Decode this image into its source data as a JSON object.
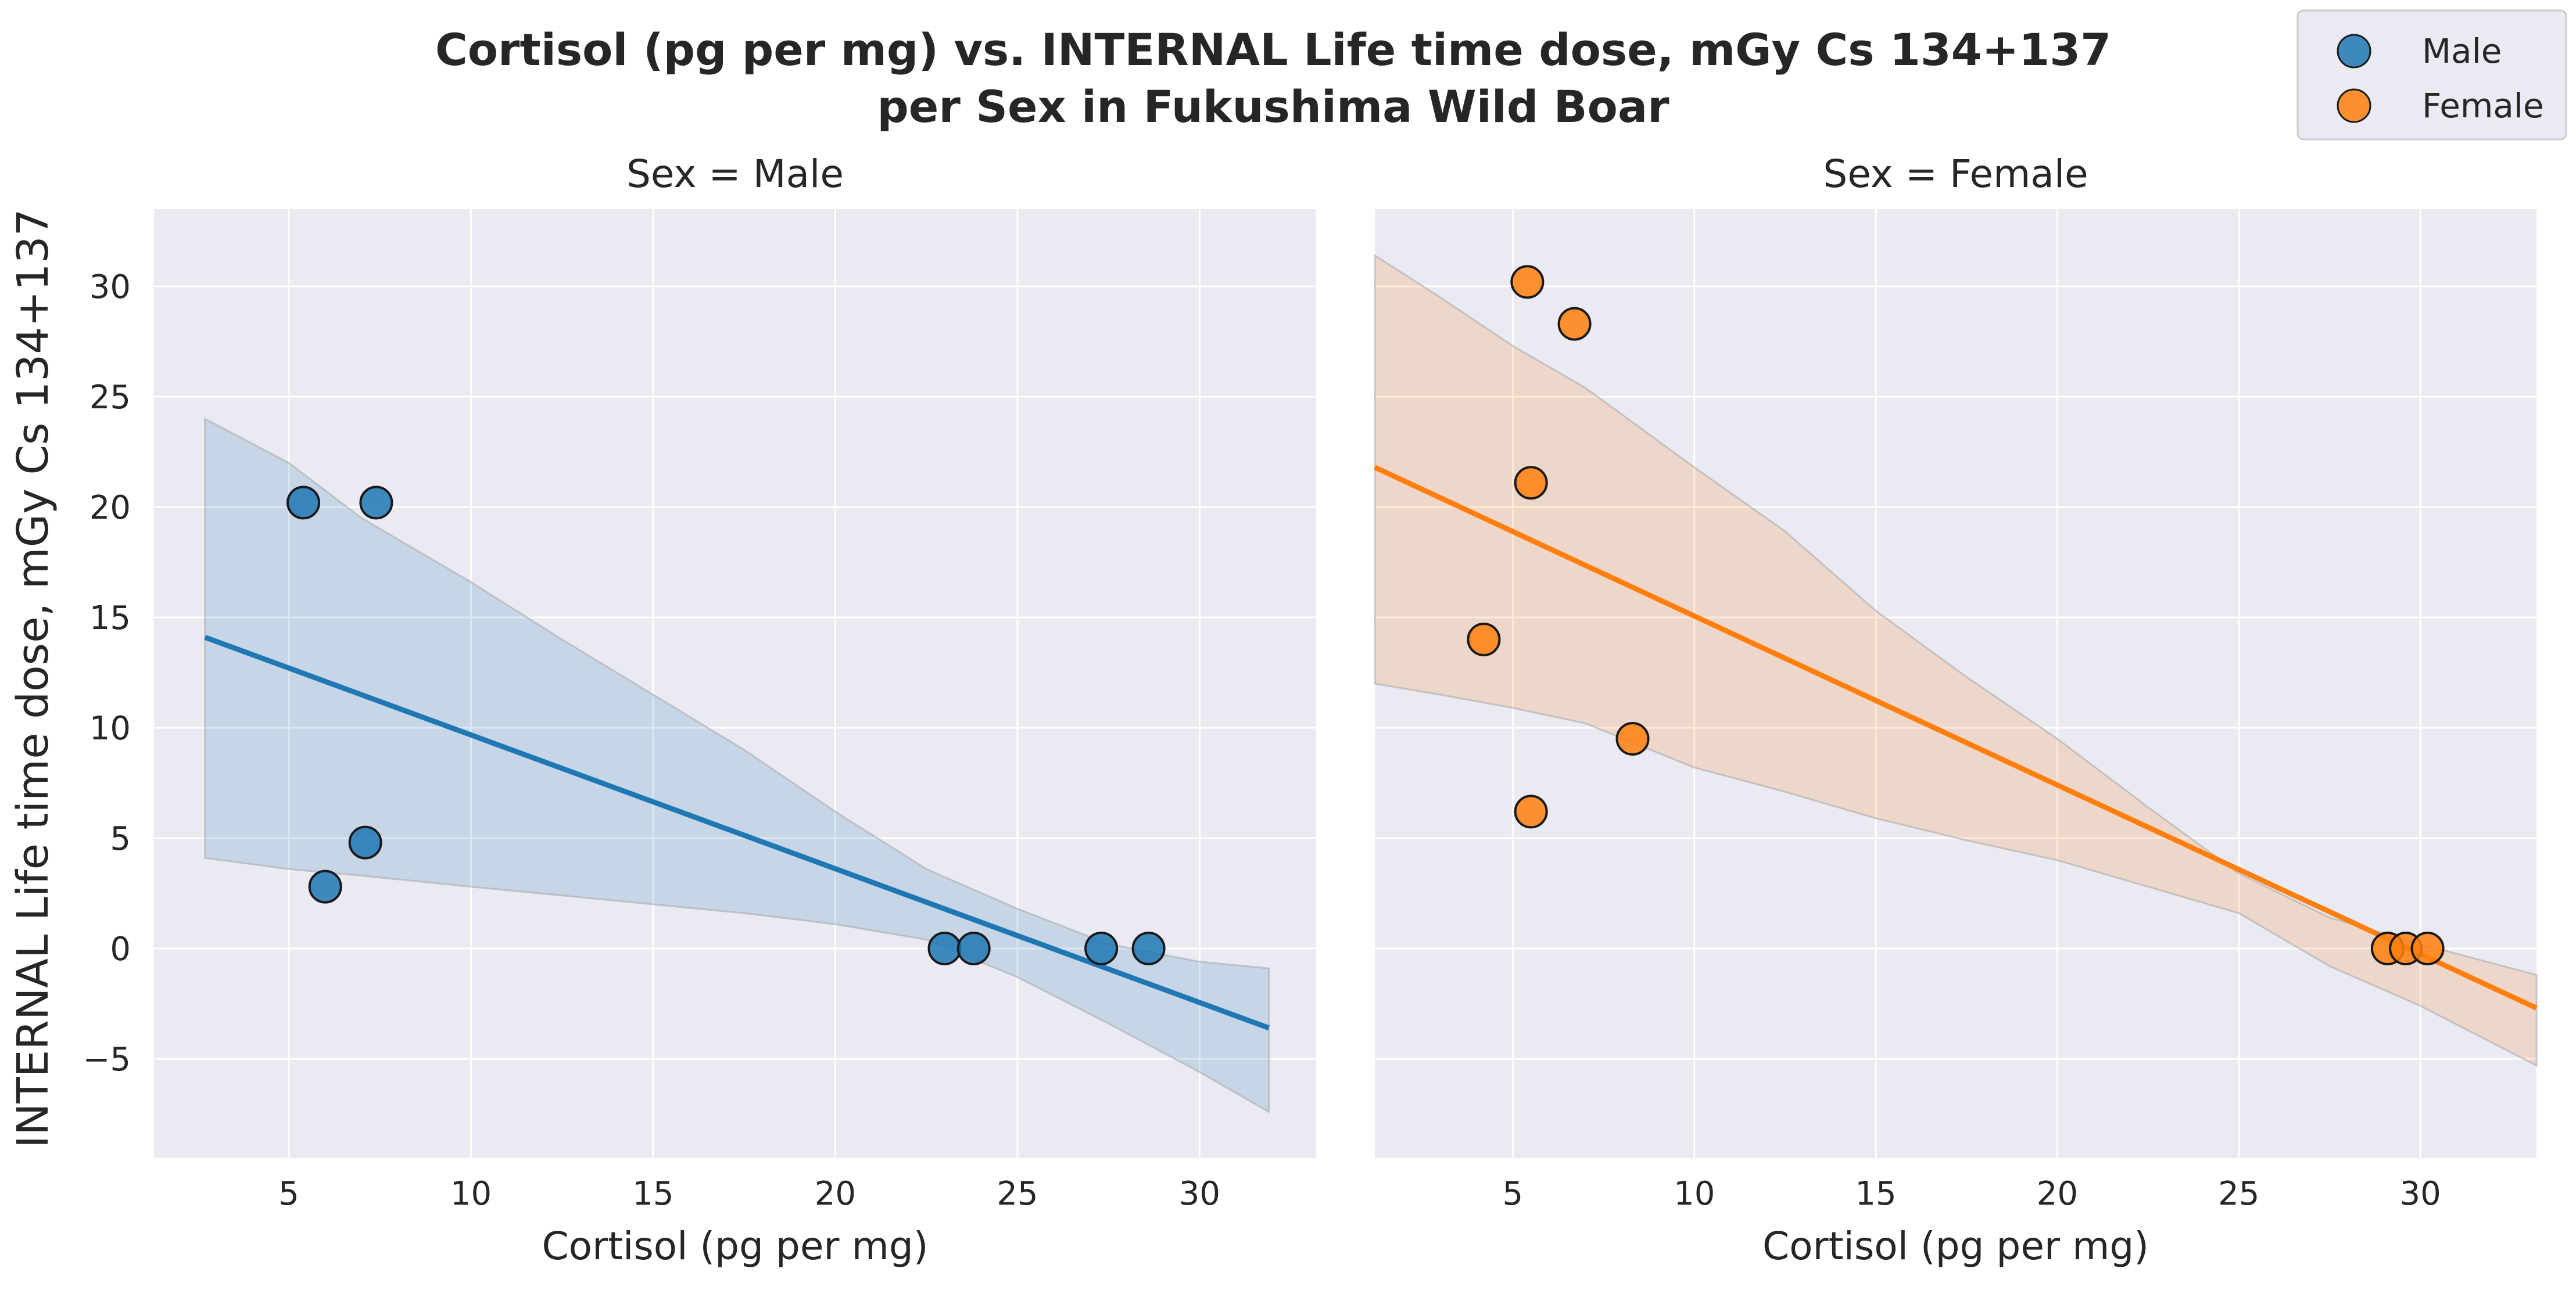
{
  "chart_data": {
    "type": "scatter",
    "title_lines": [
      "Cortisol (pg per mg) vs. INTERNAL Life time dose, mGy Cs 134+137",
      "per Sex in Fukushima Wild Boar"
    ],
    "xlabel": "Cortisol (pg per mg)",
    "ylabel": "INTERNAL Life time dose, mGy Cs 134+137",
    "ylim": [
      -9.5,
      33.5
    ],
    "yticks": [
      -5,
      0,
      5,
      10,
      15,
      20,
      25,
      30
    ],
    "ytick_labels": [
      "−5",
      "0",
      "5",
      "10",
      "15",
      "20",
      "25",
      "30"
    ],
    "grid": true,
    "legend": {
      "placement": "top-right",
      "entries": [
        {
          "label": "Male",
          "color": "#1f77b4"
        },
        {
          "label": "Female",
          "color": "#ff7f0e"
        }
      ]
    },
    "panels": [
      {
        "title": "Sex = Male",
        "series": "Male",
        "color": "#1f77b4",
        "xlim": [
          1.3,
          33.2
        ],
        "xticks": [
          5,
          10,
          15,
          20,
          25,
          30
        ],
        "points": [
          {
            "x": 5.4,
            "y": 20.2
          },
          {
            "x": 7.4,
            "y": 20.2
          },
          {
            "x": 7.1,
            "y": 4.8
          },
          {
            "x": 6.0,
            "y": 2.8
          },
          {
            "x": 23.0,
            "y": 0.0
          },
          {
            "x": 23.8,
            "y": 0.0
          },
          {
            "x": 27.3,
            "y": 0.0
          },
          {
            "x": 28.6,
            "y": 0.0
          }
        ],
        "fit": {
          "x": [
            2.7,
            31.9
          ],
          "y": [
            14.1,
            -3.6
          ]
        },
        "ci": {
          "x": [
            2.7,
            5,
            7,
            10,
            12.5,
            15,
            17.5,
            20,
            22.5,
            25,
            27.5,
            30,
            31.9
          ],
          "upper": [
            24.0,
            22.0,
            19.5,
            16.6,
            14.0,
            11.5,
            9.0,
            6.2,
            3.6,
            1.8,
            0.2,
            -0.6,
            -0.9
          ],
          "lower": [
            4.1,
            3.6,
            3.3,
            2.8,
            2.4,
            2.0,
            1.6,
            1.1,
            0.4,
            -1.3,
            -3.4,
            -5.6,
            -7.4
          ]
        }
      },
      {
        "title": "Sex = Female",
        "series": "Female",
        "color": "#ff7f0e",
        "xlim": [
          1.2,
          33.2
        ],
        "xticks": [
          5,
          10,
          15,
          20,
          25,
          30
        ],
        "points": [
          {
            "x": 5.4,
            "y": 30.2
          },
          {
            "x": 6.7,
            "y": 28.3
          },
          {
            "x": 5.5,
            "y": 21.1
          },
          {
            "x": 4.2,
            "y": 14.0
          },
          {
            "x": 8.3,
            "y": 9.5
          },
          {
            "x": 5.5,
            "y": 6.2
          },
          {
            "x": 29.1,
            "y": 0.0
          },
          {
            "x": 29.6,
            "y": 0.0
          },
          {
            "x": 30.2,
            "y": 0.0
          }
        ],
        "fit": {
          "x": [
            1.2,
            33.2
          ],
          "y": [
            21.8,
            -2.7
          ]
        },
        "ci": {
          "x": [
            1.2,
            3,
            5,
            7,
            10,
            12.5,
            15,
            17.5,
            20,
            22.5,
            25,
            27.5,
            30,
            33.2
          ],
          "upper": [
            31.4,
            29.5,
            27.3,
            25.4,
            21.8,
            18.9,
            15.3,
            12.3,
            9.5,
            6.4,
            3.4,
            1.4,
            0.2,
            -1.2
          ],
          "lower": [
            12.0,
            11.5,
            10.9,
            10.2,
            8.2,
            7.1,
            5.9,
            4.9,
            4.0,
            2.8,
            1.6,
            -0.8,
            -2.6,
            -5.3
          ]
        }
      }
    ]
  }
}
